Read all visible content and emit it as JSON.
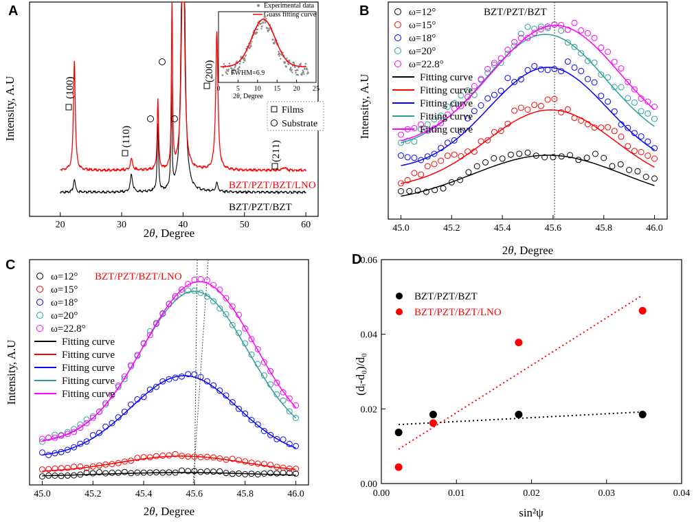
{
  "panels": {
    "A": {
      "letter": "A",
      "xlabel_prefix": "2",
      "xlabel_theta": "θ",
      "xlabel_suffix": ", Degree",
      "ylabel": "Intensity, A.U",
      "xticks": [
        "20",
        "30",
        "40",
        "50",
        "60"
      ],
      "curve_labels": {
        "lno": "BZT/PZT/BZT/LNO",
        "bzt": "BZT/PZT/BZT"
      },
      "peak_labels": [
        "(100)",
        "(110)",
        "(200)",
        "(211)"
      ],
      "legend": {
        "films": "Films",
        "substrate": "Substrate"
      },
      "inset": {
        "legend_exp": "Experimental data",
        "legend_fit": "Guass fitting curve",
        "fwhm": "FWHM=6.9",
        "xticks": [
          "0",
          "5",
          "10",
          "15",
          "20",
          "25"
        ],
        "xlabel": "2θ, Degree"
      }
    },
    "B": {
      "letter": "B",
      "title": "BZT/PZT/BZT",
      "xlabel_prefix": "2",
      "xlabel_theta": "θ",
      "xlabel_suffix": ", Degree",
      "ylabel": "Intensity, A.U",
      "xticks": [
        "45.0",
        "45.2",
        "45.4",
        "45.6",
        "45.8",
        "46.0"
      ]
    },
    "C": {
      "letter": "C",
      "title": "BZT/PZT/BZT/LNO",
      "xlabel_prefix": "2",
      "xlabel_theta": "θ",
      "xlabel_suffix": ", Degree",
      "ylabel": "Intensity, A.U",
      "xticks": [
        "45.0",
        "45.2",
        "45.4",
        "45.6",
        "45.8",
        "46.0"
      ]
    },
    "D": {
      "letter": "D",
      "ylabel": "(dᵢ-d₀)/d₀",
      "xlabel": "sin²ψ",
      "xticks": [
        "0.00",
        "0.01",
        "0.02",
        "0.03",
        "0.04"
      ],
      "yticks": [
        "0.00",
        "0.02",
        "0.04",
        "0.06"
      ],
      "legend": {
        "bzt": "BZT/PZT/BZT",
        "lno": "BZT/PZT/BZT/LNO"
      }
    }
  },
  "legend_omega": [
    "ω=12°",
    "ω=15°",
    "ω=18°",
    "ω=20°",
    "ω=22.8°"
  ],
  "legend_fit": "Fitting curve",
  "colors": {
    "black": "#000000",
    "red": "#ff0000",
    "blue": "#0000ff",
    "teal": "#2aa198",
    "magenta": "#ff00ff",
    "lno": "#ff0000"
  },
  "chart_data": [
    {
      "panel": "A",
      "type": "line",
      "xlabel": "2θ, Degree",
      "ylabel": "Intensity, A.U",
      "xlim": [
        15,
        62
      ],
      "series": [
        {
          "name": "BZT/PZT/BZT/LNO",
          "color": "#ff0000",
          "peaks": [
            [
              22.3,
              0.38
            ],
            [
              31.6,
              0.04
            ],
            [
              35.9,
              0.24
            ],
            [
              38.2,
              0.62
            ],
            [
              40.0,
              1.0
            ],
            [
              45.5,
              0.48
            ],
            [
              56.5,
              0.01
            ]
          ]
        },
        {
          "name": "BZT/PZT/BZT",
          "color": "#000000",
          "peaks": [
            [
              22.3,
              0.03
            ],
            [
              31.6,
              0.04
            ],
            [
              35.9,
              0.15
            ],
            [
              38.1,
              0.25
            ],
            [
              40.0,
              1.0
            ],
            [
              45.5,
              0.02
            ]
          ]
        }
      ],
      "inset": {
        "type": "scatter+line",
        "xlim": [
          0,
          25
        ],
        "center": 11.5,
        "fwhm": 6.9
      }
    },
    {
      "panel": "B",
      "type": "line",
      "title": "BZT/PZT/BZT",
      "xlim": [
        44.95,
        46.05
      ],
      "center_line": 45.59,
      "series": [
        {
          "name": "ω=12°",
          "center": 45.58,
          "amplitude": 0.25
        },
        {
          "name": "ω=15°",
          "center": 45.59,
          "amplitude": 0.45
        },
        {
          "name": "ω=18°",
          "center": 45.58,
          "amplitude": 0.55
        },
        {
          "name": "ω=20°",
          "center": 45.57,
          "amplitude": 0.65
        },
        {
          "name": "ω=22.8°",
          "center": 45.6,
          "amplitude": 0.62
        }
      ]
    },
    {
      "panel": "C",
      "type": "line",
      "title": "BZT/PZT/BZT/LNO",
      "xlim": [
        44.95,
        46.05
      ],
      "center_lines": [
        45.56,
        45.62
      ],
      "series": [
        {
          "name": "ω=12°",
          "center": 45.55,
          "amplitude": 0.02
        },
        {
          "name": "ω=15°",
          "center": 45.55,
          "amplitude": 0.07
        },
        {
          "name": "ω=18°",
          "center": 45.56,
          "amplitude": 0.55
        },
        {
          "name": "ω=20°",
          "center": 45.6,
          "amplitude": 0.86
        },
        {
          "name": "ω=22.8°",
          "center": 45.62,
          "amplitude": 0.9
        }
      ]
    },
    {
      "panel": "D",
      "type": "scatter",
      "xlabel": "sin²ψ",
      "ylabel": "(dᵢ-d₀)/d₀",
      "xlim": [
        0,
        0.04
      ],
      "ylim": [
        0,
        0.06
      ],
      "series": [
        {
          "name": "BZT/PZT/BZT",
          "color": "#000000",
          "x": [
            0.0023,
            0.0069,
            0.0183,
            0.0348
          ],
          "y": [
            0.0137,
            0.0185,
            0.0185,
            0.0185
          ],
          "fit": [
            [
              0.0023,
              0.0158
            ],
            [
              0.0348,
              0.0192
            ]
          ]
        },
        {
          "name": "BZT/PZT/BZT/LNO",
          "color": "#ff0000",
          "x": [
            0.0023,
            0.0069,
            0.0183,
            0.0348
          ],
          "y": [
            0.0044,
            0.0162,
            0.0378,
            0.0463
          ],
          "fit": [
            [
              0.0023,
              0.0092
            ],
            [
              0.0348,
              0.0505
            ]
          ]
        }
      ]
    }
  ]
}
